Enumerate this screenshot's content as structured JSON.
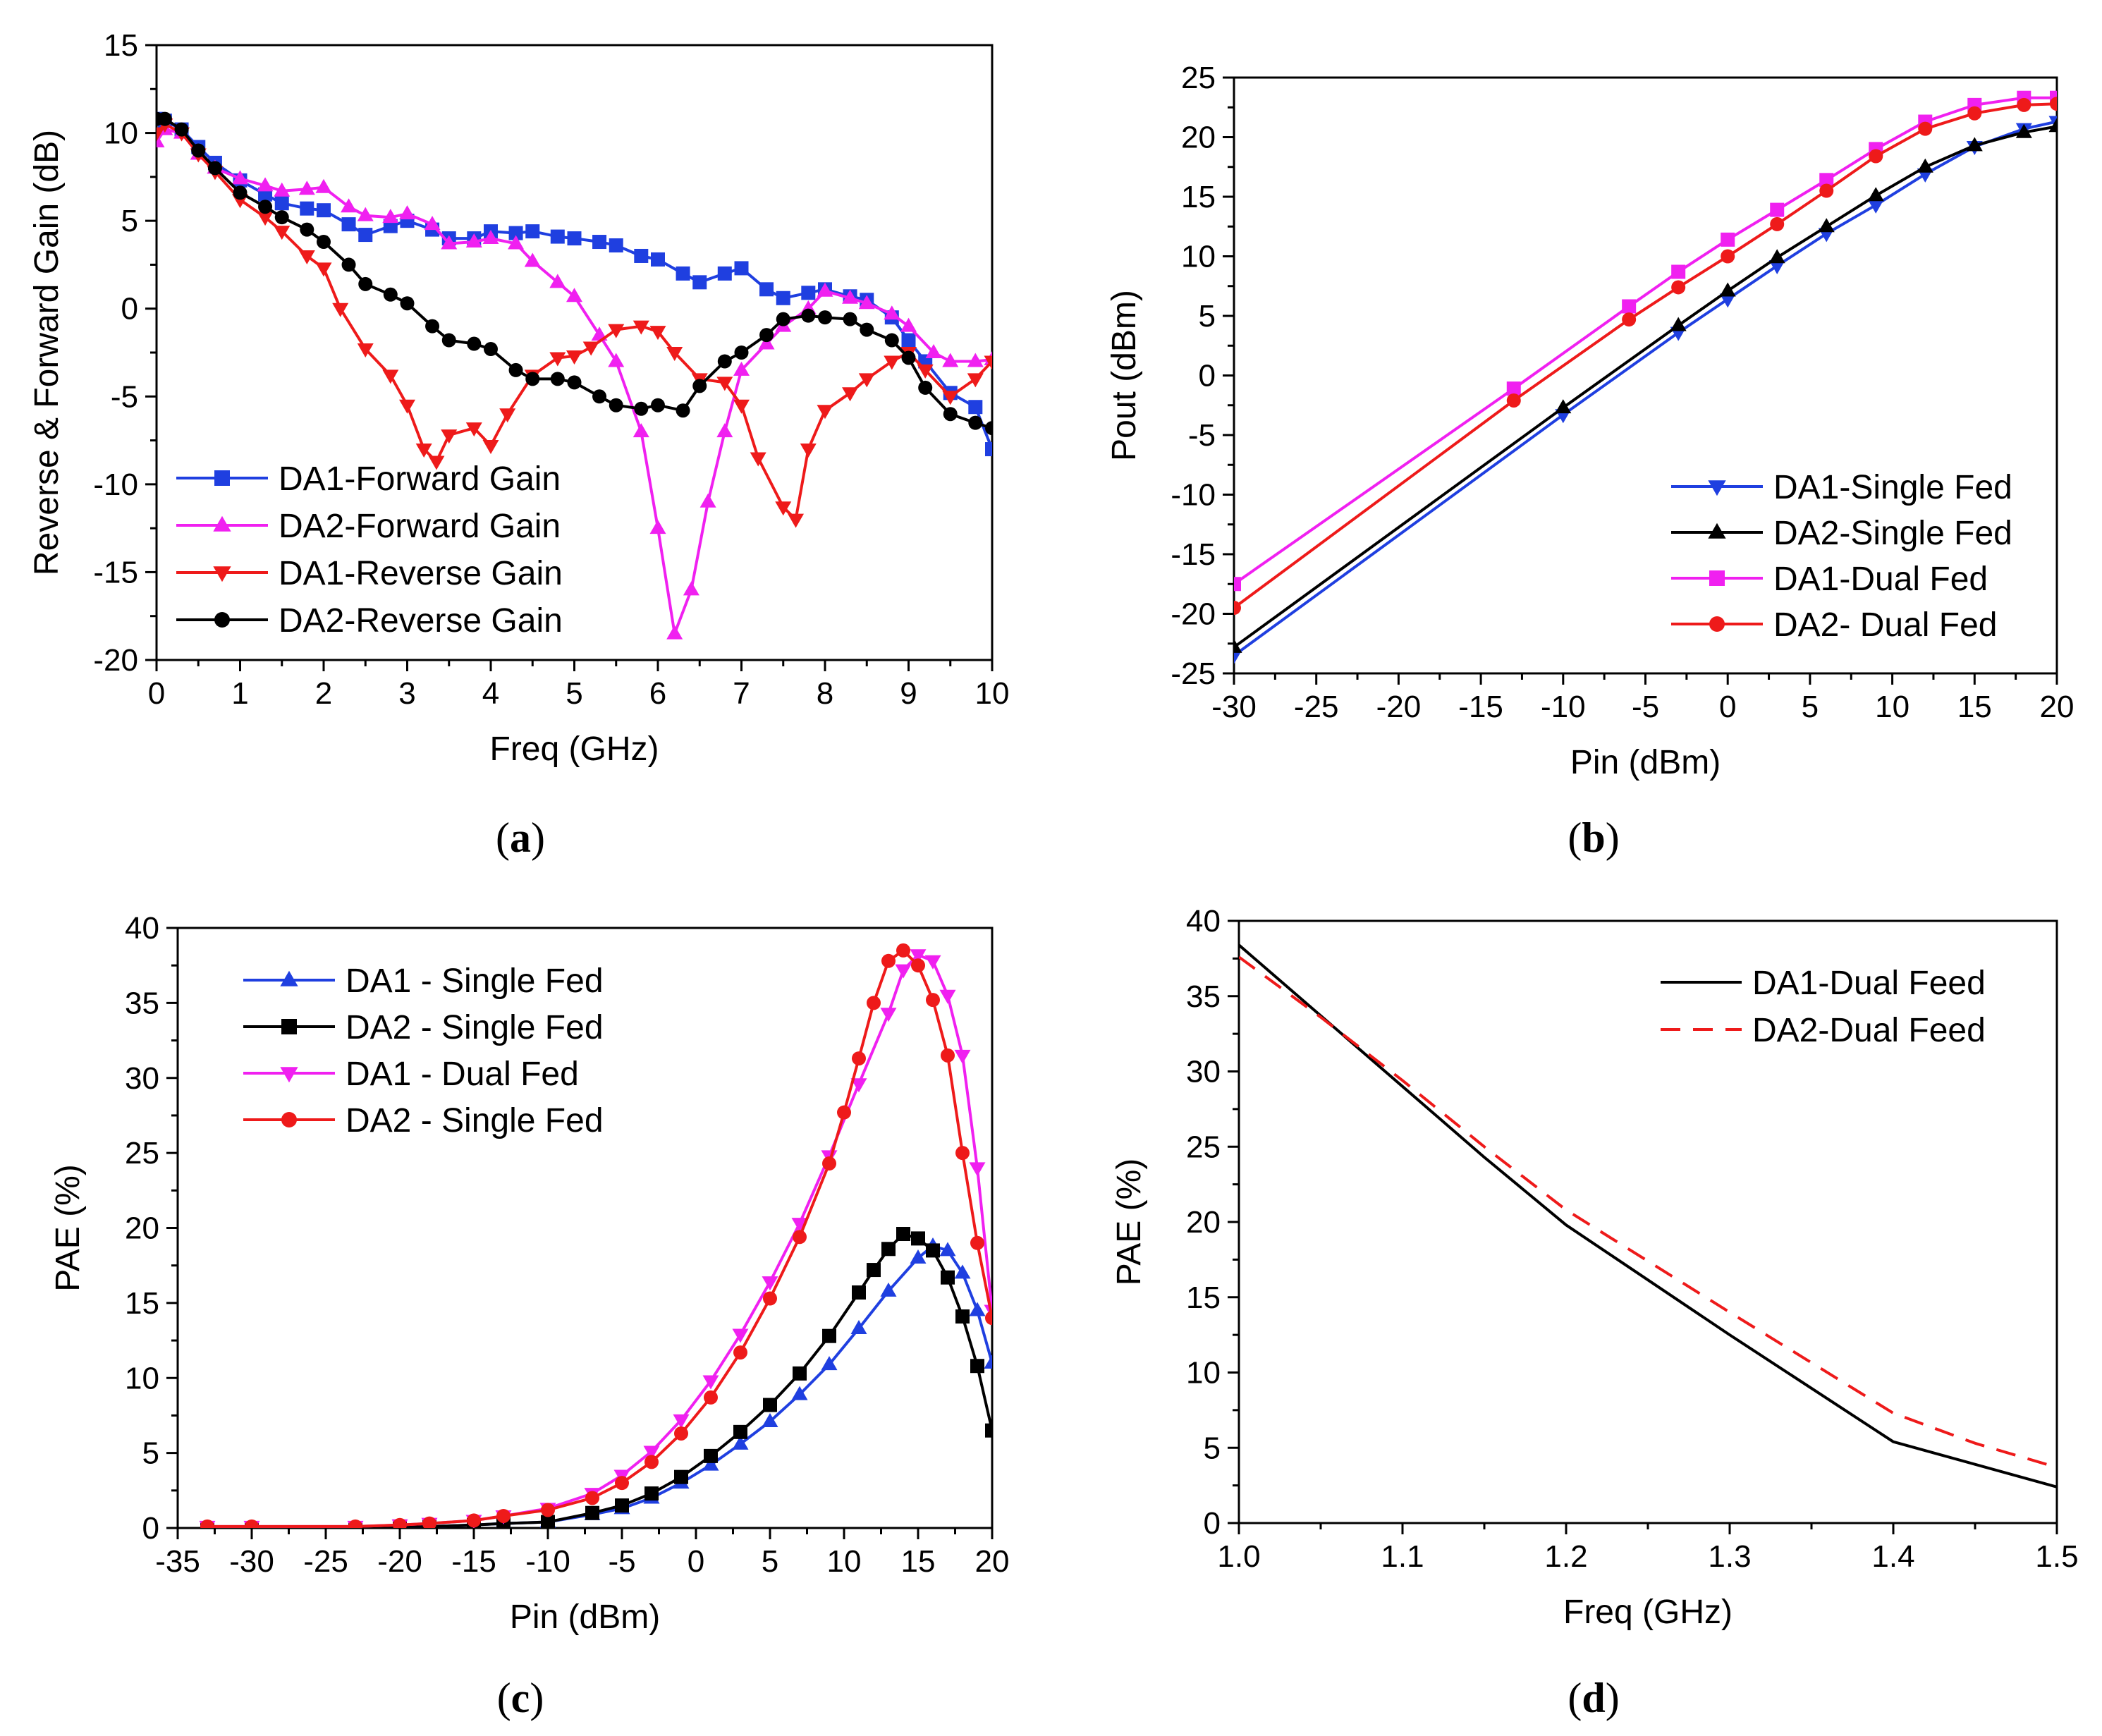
{
  "panels": [
    {
      "id": "a",
      "caption_open": "(",
      "caption_letter": "a",
      "caption_close": ")"
    },
    {
      "id": "b",
      "caption_open": "(",
      "caption_letter": "b",
      "caption_close": ")"
    },
    {
      "id": "c",
      "caption_open": "(",
      "caption_letter": "c",
      "caption_close": ")"
    },
    {
      "id": "d",
      "caption_open": "(",
      "caption_letter": "d",
      "caption_close": ")"
    }
  ],
  "chart_data": [
    {
      "id": "a",
      "type": "line",
      "xlabel": "Freq (GHz)",
      "ylabel": "Reverse & Forward Gain (dB)",
      "xlim": [
        0,
        10
      ],
      "ylim": [
        -20,
        15
      ],
      "xticks": [
        0,
        1,
        2,
        3,
        4,
        5,
        6,
        7,
        8,
        9,
        10
      ],
      "yticks": [
        -20,
        -15,
        -10,
        -5,
        0,
        5,
        10,
        15
      ],
      "legend_position": "bottom-left",
      "series": [
        {
          "name": "DA1-Forward Gain",
          "color": "#1f3fe0",
          "marker": "square",
          "x": [
            0,
            0.1,
            0.3,
            0.5,
            0.7,
            1.0,
            1.3,
            1.5,
            1.8,
            2.0,
            2.3,
            2.5,
            2.8,
            3.0,
            3.3,
            3.5,
            3.8,
            4.0,
            4.3,
            4.5,
            4.8,
            5.0,
            5.3,
            5.5,
            5.8,
            6.0,
            6.3,
            6.5,
            6.8,
            7.0,
            7.3,
            7.5,
            7.8,
            8.0,
            8.3,
            8.5,
            8.8,
            9.0,
            9.2,
            9.5,
            9.8,
            10
          ],
          "y": [
            10.8,
            10.7,
            10.2,
            9.2,
            8.3,
            7.3,
            6.5,
            6.0,
            5.7,
            5.6,
            4.8,
            4.2,
            4.7,
            5.0,
            4.5,
            4.0,
            4.0,
            4.4,
            4.3,
            4.4,
            4.1,
            4.0,
            3.8,
            3.6,
            3.0,
            2.8,
            2.0,
            1.5,
            2.0,
            2.3,
            1.1,
            0.6,
            0.9,
            1.1,
            0.7,
            0.5,
            -0.5,
            -1.8,
            -3.0,
            -4.8,
            -5.6,
            -8.0
          ]
        },
        {
          "name": "DA2-Forward Gain",
          "color": "#f020f0",
          "marker": "triangle-up",
          "x": [
            0,
            0.1,
            0.3,
            0.5,
            0.7,
            1.0,
            1.3,
            1.5,
            1.8,
            2.0,
            2.3,
            2.5,
            2.8,
            3.0,
            3.3,
            3.5,
            3.8,
            4.0,
            4.3,
            4.5,
            4.8,
            5.0,
            5.3,
            5.5,
            5.8,
            6.0,
            6.2,
            6.4,
            6.6,
            6.8,
            7.0,
            7.3,
            7.5,
            7.8,
            8.0,
            8.3,
            8.5,
            8.8,
            9.0,
            9.3,
            9.5,
            9.8,
            10
          ],
          "y": [
            9.5,
            10.2,
            10.0,
            8.8,
            8.0,
            7.4,
            7.0,
            6.7,
            6.8,
            6.9,
            5.8,
            5.3,
            5.2,
            5.4,
            4.8,
            3.7,
            3.8,
            4.0,
            3.7,
            2.7,
            1.5,
            0.7,
            -1.5,
            -3.0,
            -7.0,
            -12.5,
            -18.5,
            -16.0,
            -11.0,
            -7.0,
            -3.5,
            -2.0,
            -1.0,
            0.0,
            1.0,
            0.6,
            0.3,
            -0.3,
            -1.0,
            -2.5,
            -3.0,
            -3.0,
            -2.9
          ]
        },
        {
          "name": "DA1-Reverse Gain",
          "color": "#ee1a1a",
          "marker": "triangle-down",
          "x": [
            0,
            0.1,
            0.3,
            0.5,
            0.7,
            1.0,
            1.3,
            1.5,
            1.8,
            2.0,
            2.2,
            2.5,
            2.8,
            3.0,
            3.2,
            3.35,
            3.5,
            3.8,
            4.0,
            4.2,
            4.5,
            4.8,
            5.0,
            5.2,
            5.5,
            5.8,
            6.0,
            6.2,
            6.5,
            6.8,
            7.0,
            7.2,
            7.5,
            7.65,
            7.8,
            8.0,
            8.3,
            8.5,
            8.8,
            9.0,
            9.2,
            9.5,
            9.8,
            10
          ],
          "y": [
            10.0,
            10.5,
            10.0,
            8.8,
            7.8,
            6.2,
            5.2,
            4.4,
            3.0,
            2.3,
            0.0,
            -2.3,
            -3.8,
            -5.5,
            -8.0,
            -8.7,
            -7.2,
            -6.8,
            -7.8,
            -6.0,
            -3.8,
            -2.8,
            -2.7,
            -2.2,
            -1.2,
            -1.0,
            -1.3,
            -2.5,
            -4.0,
            -4.2,
            -5.5,
            -8.5,
            -11.3,
            -12.0,
            -8.0,
            -5.8,
            -4.8,
            -4.0,
            -3.0,
            -2.5,
            -3.5,
            -5.0,
            -4.0,
            -3.0
          ]
        },
        {
          "name": "DA2-Reverse Gain",
          "color": "#000000",
          "marker": "circle",
          "x": [
            0,
            0.1,
            0.3,
            0.5,
            0.7,
            1.0,
            1.3,
            1.5,
            1.8,
            2.0,
            2.3,
            2.5,
            2.8,
            3.0,
            3.3,
            3.5,
            3.8,
            4.0,
            4.3,
            4.5,
            4.8,
            5.0,
            5.3,
            5.5,
            5.8,
            6.0,
            6.3,
            6.5,
            6.8,
            7.0,
            7.3,
            7.5,
            7.8,
            8.0,
            8.3,
            8.5,
            8.8,
            9.0,
            9.2,
            9.5,
            9.8,
            10
          ],
          "y": [
            10.8,
            10.8,
            10.2,
            9.0,
            8.0,
            6.6,
            5.8,
            5.2,
            4.5,
            3.8,
            2.5,
            1.4,
            0.8,
            0.3,
            -1.0,
            -1.8,
            -2.0,
            -2.3,
            -3.5,
            -4.0,
            -4.0,
            -4.2,
            -5.0,
            -5.5,
            -5.7,
            -5.5,
            -5.8,
            -4.4,
            -3.0,
            -2.5,
            -1.5,
            -0.6,
            -0.4,
            -0.5,
            -0.6,
            -1.2,
            -1.8,
            -2.8,
            -4.5,
            -6.0,
            -6.5,
            -6.8
          ]
        }
      ]
    },
    {
      "id": "b",
      "type": "line",
      "xlabel": "Pin (dBm)",
      "ylabel": "Pout (dBm)",
      "xlim": [
        -30,
        20
      ],
      "ylim": [
        -25,
        25
      ],
      "xticks": [
        -30,
        -25,
        -20,
        -15,
        -10,
        -5,
        0,
        5,
        10,
        15,
        20
      ],
      "yticks": [
        -25,
        -20,
        -15,
        -10,
        -5,
        0,
        5,
        10,
        15,
        20,
        25
      ],
      "legend_position": "bottom-right",
      "series": [
        {
          "name": "DA1-Single Fed",
          "color": "#1f3fe0",
          "marker": "triangle-down",
          "x": [
            -30,
            -10,
            -3,
            0,
            3,
            6,
            9,
            12,
            15,
            18,
            20
          ],
          "y": [
            -23.5,
            -3.3,
            3.6,
            6.4,
            9.2,
            11.9,
            14.3,
            16.9,
            19.2,
            20.7,
            21.3
          ]
        },
        {
          "name": "DA2-Single Fed",
          "color": "#000000",
          "marker": "triangle-up",
          "x": [
            -30,
            -10,
            -3,
            0,
            3,
            6,
            9,
            12,
            15,
            18,
            20
          ],
          "y": [
            -22.8,
            -2.7,
            4.2,
            7.1,
            9.9,
            12.5,
            15.1,
            17.5,
            19.3,
            20.4,
            20.9
          ]
        },
        {
          "name": "DA1-Dual Fed",
          "color": "#f020f0",
          "marker": "square",
          "x": [
            -30,
            -13,
            -6,
            -3,
            0,
            3,
            6,
            9,
            12,
            15,
            18,
            20
          ],
          "y": [
            -17.5,
            -1.1,
            5.8,
            8.7,
            11.4,
            13.9,
            16.4,
            19.0,
            21.3,
            22.7,
            23.3,
            23.3
          ]
        },
        {
          "name": "DA2- Dual Fed",
          "color": "#ee1a1a",
          "marker": "circle",
          "x": [
            -30,
            -13,
            -6,
            -3,
            0,
            3,
            6,
            9,
            12,
            15,
            18,
            20
          ],
          "y": [
            -19.5,
            -2.1,
            4.7,
            7.4,
            10.0,
            12.7,
            15.5,
            18.4,
            20.7,
            22.0,
            22.7,
            22.8
          ]
        }
      ]
    },
    {
      "id": "c",
      "type": "line",
      "xlabel": "Pin (dBm)",
      "ylabel": "PAE (%)",
      "xlim": [
        -35,
        20
      ],
      "ylim": [
        0,
        40
      ],
      "xticks": [
        -35,
        -30,
        -25,
        -20,
        -15,
        -10,
        -5,
        0,
        5,
        10,
        15,
        20
      ],
      "yticks": [
        0,
        5,
        10,
        15,
        20,
        25,
        30,
        35,
        40
      ],
      "legend_position": "top-left",
      "series": [
        {
          "name": "DA1 - Single Fed",
          "color": "#1f3fe0",
          "marker": "triangle-up",
          "x": [
            -33,
            -30,
            -23,
            -20,
            -18,
            -15,
            -13,
            -10,
            -7,
            -5,
            -3,
            -1,
            1,
            3,
            5,
            7,
            9,
            11,
            13,
            15,
            16,
            17,
            18,
            19,
            20
          ],
          "y": [
            0,
            0,
            0,
            0.1,
            0.1,
            0.2,
            0.3,
            0.4,
            0.9,
            1.3,
            2.0,
            3.0,
            4.2,
            5.6,
            7.1,
            8.9,
            10.9,
            13.3,
            15.8,
            18.0,
            18.8,
            18.5,
            17.0,
            14.5,
            11.0
          ]
        },
        {
          "name": "DA2 - Single Fed",
          "color": "#000000",
          "marker": "square",
          "x": [
            -33,
            -30,
            -23,
            -20,
            -18,
            -15,
            -13,
            -10,
            -7,
            -5,
            -3,
            -1,
            1,
            3,
            5,
            7,
            9,
            11,
            12,
            13,
            14,
            15,
            16,
            17,
            18,
            19,
            20
          ],
          "y": [
            0,
            0,
            0,
            0.1,
            0.1,
            0.2,
            0.3,
            0.4,
            1.0,
            1.5,
            2.3,
            3.4,
            4.8,
            6.4,
            8.2,
            10.3,
            12.8,
            15.7,
            17.2,
            18.6,
            19.6,
            19.3,
            18.5,
            16.7,
            14.1,
            10.8,
            6.5
          ]
        },
        {
          "name": "DA1 - Dual Fed",
          "color": "#f020f0",
          "marker": "triangle-down",
          "x": [
            -33,
            -30,
            -23,
            -20,
            -18,
            -15,
            -13,
            -10,
            -7,
            -5,
            -3,
            -1,
            1,
            3,
            5,
            7,
            9,
            11,
            13,
            14,
            15,
            16,
            17,
            18,
            19,
            20
          ],
          "y": [
            0.1,
            0.1,
            0.1,
            0.2,
            0.3,
            0.5,
            0.8,
            1.3,
            2.3,
            3.5,
            5.1,
            7.2,
            9.8,
            12.9,
            16.4,
            20.3,
            24.8,
            29.6,
            34.3,
            37.2,
            38.2,
            37.8,
            35.5,
            31.5,
            24.0,
            14.5
          ]
        },
        {
          "name": "DA2 - Single Fed",
          "color": "#ee1a1a",
          "marker": "circle",
          "x": [
            -33,
            -30,
            -23,
            -20,
            -18,
            -15,
            -13,
            -10,
            -7,
            -5,
            -3,
            -1,
            1,
            3,
            5,
            7,
            9,
            10,
            11,
            12,
            13,
            14,
            15,
            16,
            17,
            18,
            19,
            20
          ],
          "y": [
            0.1,
            0.1,
            0.1,
            0.2,
            0.3,
            0.5,
            0.8,
            1.2,
            2.0,
            3.0,
            4.4,
            6.3,
            8.7,
            11.7,
            15.3,
            19.4,
            24.3,
            27.7,
            31.3,
            35.0,
            37.8,
            38.5,
            37.5,
            35.2,
            31.5,
            25.0,
            19.0,
            14.0
          ]
        }
      ]
    },
    {
      "id": "d",
      "type": "line",
      "xlabel": "Freq (GHz)",
      "ylabel": "PAE (%)",
      "xlim": [
        1.0,
        1.5
      ],
      "ylim": [
        0,
        40
      ],
      "xticks": [
        1.0,
        1.1,
        1.2,
        1.3,
        1.4,
        1.5
      ],
      "xtick_labels": [
        "1.0",
        "1.1",
        "1.2",
        "1.3",
        "1.4",
        "1.5"
      ],
      "yticks": [
        0,
        5,
        10,
        15,
        20,
        25,
        30,
        35,
        40
      ],
      "legend_position": "top-right",
      "series": [
        {
          "name": "DA1-Dual Feed",
          "color": "#000000",
          "dash": "solid",
          "x": [
            1.0,
            1.05,
            1.1,
            1.15,
            1.2,
            1.3,
            1.4,
            1.5
          ],
          "y": [
            38.4,
            33.7,
            29.0,
            24.3,
            19.8,
            12.5,
            5.4,
            2.4
          ]
        },
        {
          "name": "DA2-Dual Feed",
          "color": "#ee1a1a",
          "dash": "dashed",
          "x": [
            1.0,
            1.05,
            1.1,
            1.15,
            1.2,
            1.25,
            1.3,
            1.4,
            1.45,
            1.5
          ],
          "y": [
            37.6,
            33.6,
            29.4,
            25.0,
            20.8,
            17.4,
            14.0,
            7.3,
            5.3,
            3.7
          ]
        }
      ]
    }
  ]
}
